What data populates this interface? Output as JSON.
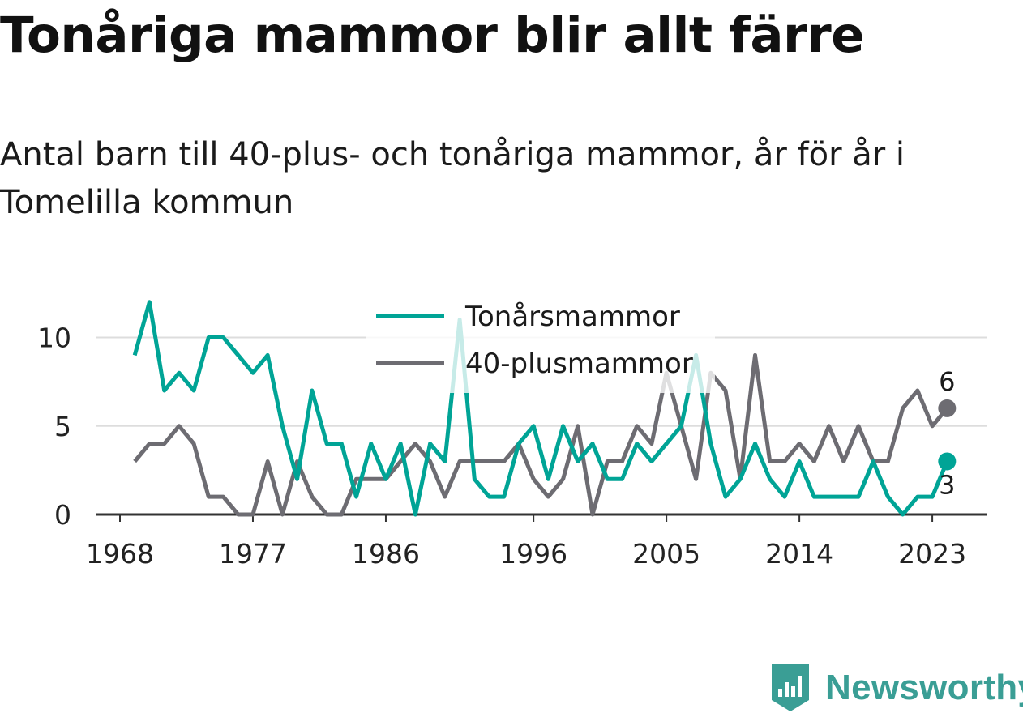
{
  "title": "Tonåriga mammor blir allt färre",
  "subtitle": "Antal barn till 40-plus- och tonåriga mammor, år för år i Tomelilla kommun",
  "brand": "Newsworthy",
  "colors": {
    "teen": "#00a496",
    "forty": "#6d6c72",
    "grid": "#dddddd",
    "axis": "#333333",
    "brand": "#3a9e95"
  },
  "chart_data": {
    "type": "line",
    "title": "Tonåriga mammor blir allt färre",
    "subtitle": "Antal barn till 40-plus- och tonåriga mammor, år för år i Tomelilla kommun",
    "xlabel": "",
    "ylabel": "",
    "x": [
      1969,
      1970,
      1971,
      1972,
      1973,
      1974,
      1975,
      1976,
      1977,
      1978,
      1979,
      1980,
      1981,
      1982,
      1983,
      1984,
      1985,
      1986,
      1987,
      1988,
      1989,
      1990,
      1991,
      1992,
      1993,
      1994,
      1995,
      1996,
      1997,
      1998,
      1999,
      2000,
      2001,
      2002,
      2003,
      2004,
      2005,
      2006,
      2007,
      2008,
      2009,
      2010,
      2011,
      2012,
      2013,
      2014,
      2015,
      2016,
      2017,
      2018,
      2019,
      2020,
      2021,
      2022,
      2023,
      2024
    ],
    "xticks": [
      1968,
      1977,
      1986,
      1996,
      2005,
      2014,
      2023
    ],
    "yticks": [
      0,
      5,
      10
    ],
    "xlim": [
      1968,
      2024.5
    ],
    "ylim": [
      0,
      12
    ],
    "grid": true,
    "legend_position": "top-center",
    "series": [
      {
        "name": "Tonårsmammor",
        "color": "#00a496",
        "values": [
          9,
          12,
          7,
          8,
          7,
          10,
          10,
          9,
          8,
          9,
          5,
          2,
          7,
          4,
          4,
          1,
          4,
          2,
          4,
          0,
          4,
          3,
          11,
          2,
          1,
          1,
          4,
          5,
          2,
          5,
          3,
          4,
          2,
          2,
          4,
          3,
          4,
          5,
          9,
          4,
          1,
          2,
          4,
          2,
          1,
          3,
          1,
          1,
          1,
          1,
          3,
          1,
          0,
          1,
          1,
          3
        ]
      },
      {
        "name": "40-plusmammor",
        "color": "#6d6c72",
        "values": [
          3,
          4,
          4,
          5,
          4,
          1,
          1,
          0,
          0,
          3,
          0,
          3,
          1,
          0,
          0,
          2,
          2,
          2,
          3,
          4,
          3,
          1,
          3,
          3,
          3,
          3,
          4,
          2,
          1,
          2,
          5,
          0,
          3,
          3,
          5,
          4,
          8,
          5,
          2,
          8,
          7,
          2,
          9,
          3,
          3,
          4,
          3,
          5,
          3,
          5,
          3,
          3,
          6,
          7,
          5,
          6
        ]
      }
    ],
    "end_labels": [
      "6",
      "3"
    ]
  }
}
